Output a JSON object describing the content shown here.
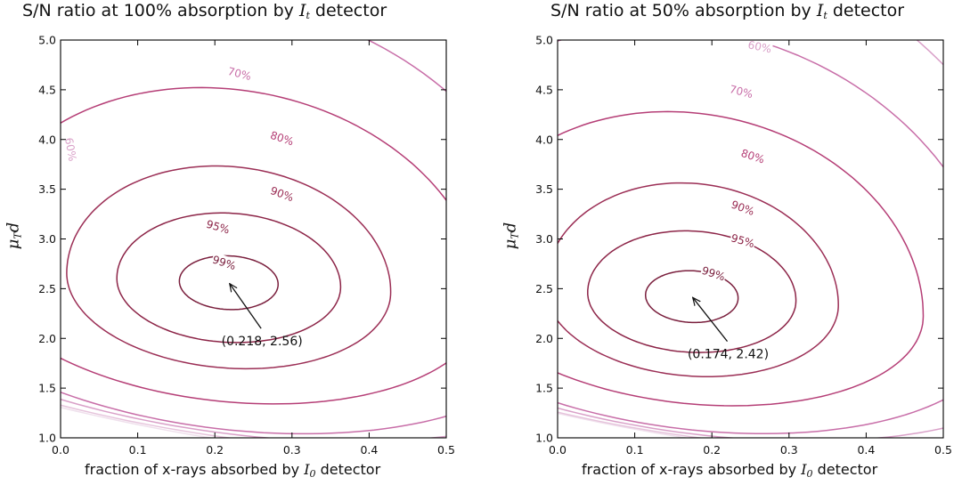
{
  "chart_data": [
    {
      "type": "contour",
      "title_prefix": "S/N ratio at 100% absorption by ",
      "title_var": "I",
      "title_var_sub": "t",
      "title_suffix": " detector",
      "xlabel_prefix": "fraction of x-rays absorbed by ",
      "xlabel_var": "I",
      "xlabel_var_sub": "0",
      "xlabel_suffix": " detector",
      "ylabel_var": "μ",
      "ylabel_var_sub": "T",
      "ylabel_var2": "d",
      "xlim": [
        0.0,
        0.5
      ],
      "ylim": [
        1.0,
        5.0
      ],
      "xticks": [
        "0.0",
        "0.1",
        "0.2",
        "0.3",
        "0.4",
        "0.5"
      ],
      "yticks": [
        "1.0",
        "1.5",
        "2.0",
        "2.5",
        "3.0",
        "3.5",
        "4.0",
        "4.5",
        "5.0"
      ],
      "optimum": {
        "x": 0.218,
        "y": 2.56
      },
      "annotation": "(0.218, 2.56)",
      "annotation_anchor": {
        "x": 0.26,
        "y": 2.1
      },
      "levels": [
        {
          "label": "99%",
          "level": 0.99,
          "color": "#7a1f3d",
          "rx": 0.064,
          "ryUp": 0.27,
          "ryDown": 0.27,
          "tilt": -0.25,
          "label_at": {
            "x": 0.212,
            "y": 2.76
          },
          "label_rot": 18
        },
        {
          "label": "95%",
          "level": 0.95,
          "color": "#8c2447",
          "rx": 0.145,
          "ryUp": 0.7,
          "ryDown": 0.6,
          "tilt": -0.3,
          "label_at": {
            "x": 0.204,
            "y": 3.12
          },
          "label_rot": 16
        },
        {
          "label": "90%",
          "level": 0.9,
          "color": "#9b2e55",
          "rx": 0.21,
          "ryUp": 1.17,
          "ryDown": 0.86,
          "tilt": -0.45,
          "label_at": {
            "x": 0.287,
            "y": 3.45
          },
          "label_rot": 20
        },
        {
          "label": "80%",
          "level": 0.8,
          "color": "#b53e76",
          "rx": 0.33,
          "ryUp": 1.95,
          "ryDown": 1.2,
          "tilt": -0.65,
          "label_at": {
            "x": 0.287,
            "y": 4.01
          },
          "label_rot": 18
        },
        {
          "label": "70%",
          "level": 0.7,
          "color": "#c86ea8",
          "rx": 0.43,
          "ryUp": 2.85,
          "ryDown": 1.48,
          "tilt": -0.8,
          "label_at": {
            "x": 0.232,
            "y": 4.66
          },
          "label_rot": 14
        },
        {
          "label": "60%",
          "level": 0.6,
          "color": "#d9a0c8",
          "rx": 0.52,
          "ryUp": 3.75,
          "ryDown": 1.52,
          "tilt": -0.95,
          "label_at": {
            "x": 0.013,
            "y": 3.9
          },
          "label_rot": 80
        },
        {
          "label": "",
          "level": 0.5,
          "color": "#e6c4dc",
          "rx": 0.62,
          "ryUp": 4.6,
          "ryDown": 1.56,
          "tilt": -1.05,
          "label_at": null,
          "label_rot": 0
        },
        {
          "label": "",
          "level": 0.4,
          "color": "#efe0ec",
          "rx": 0.72,
          "ryUp": 5.6,
          "ryDown": 1.59,
          "tilt": -1.2,
          "label_at": null,
          "label_rot": 0
        }
      ]
    },
    {
      "type": "contour",
      "title_prefix": "S/N ratio at 50% absorption by ",
      "title_var": "I",
      "title_var_sub": "t",
      "title_suffix": " detector",
      "xlabel_prefix": "fraction of x-rays absorbed by ",
      "xlabel_var": "I",
      "xlabel_var_sub": "0",
      "xlabel_suffix": " detector",
      "ylabel_var": "μ",
      "ylabel_var_sub": "T",
      "ylabel_var2": "d",
      "xlim": [
        0.0,
        0.5
      ],
      "ylim": [
        1.0,
        5.0
      ],
      "xticks": [
        "0.0",
        "0.1",
        "0.2",
        "0.3",
        "0.4",
        "0.5"
      ],
      "yticks": [
        "1.0",
        "1.5",
        "2.0",
        "2.5",
        "3.0",
        "3.5",
        "4.0",
        "4.5",
        "5.0"
      ],
      "optimum": {
        "x": 0.174,
        "y": 2.42
      },
      "annotation": "(0.174, 2.42)",
      "annotation_anchor": {
        "x": 0.22,
        "y": 1.97
      },
      "levels": [
        {
          "label": "99%",
          "level": 0.99,
          "color": "#7a1f3d",
          "rx": 0.06,
          "ryUp": 0.26,
          "ryDown": 0.26,
          "tilt": -0.25,
          "label_at": {
            "x": 0.202,
            "y": 2.65
          },
          "label_rot": 18
        },
        {
          "label": "95%",
          "level": 0.95,
          "color": "#8c2447",
          "rx": 0.135,
          "ryUp": 0.66,
          "ryDown": 0.56,
          "tilt": -0.3,
          "label_at": {
            "x": 0.24,
            "y": 2.98
          },
          "label_rot": 16
        },
        {
          "label": "90%",
          "level": 0.9,
          "color": "#9b2e55",
          "rx": 0.19,
          "ryUp": 1.14,
          "ryDown": 0.8,
          "tilt": -0.45,
          "label_at": {
            "x": 0.24,
            "y": 3.31
          },
          "label_rot": 20
        },
        {
          "label": "80%",
          "level": 0.8,
          "color": "#b53e76",
          "rx": 0.3,
          "ryUp": 1.85,
          "ryDown": 1.08,
          "tilt": -0.65,
          "label_at": {
            "x": 0.253,
            "y": 3.83
          },
          "label_rot": 18
        },
        {
          "label": "70%",
          "level": 0.7,
          "color": "#c86ea8",
          "rx": 0.4,
          "ryUp": 2.7,
          "ryDown": 1.34,
          "tilt": -0.8,
          "label_at": {
            "x": 0.238,
            "y": 4.48
          },
          "label_rot": 14
        },
        {
          "label": "60%",
          "level": 0.6,
          "color": "#d9a0c8",
          "rx": 0.48,
          "ryUp": 3.6,
          "ryDown": 1.38,
          "tilt": -0.95,
          "label_at": {
            "x": 0.262,
            "y": 4.93
          },
          "label_rot": 12
        },
        {
          "label": "",
          "level": 0.5,
          "color": "#e6c4dc",
          "rx": 0.58,
          "ryUp": 4.5,
          "ryDown": 1.41,
          "tilt": -1.05,
          "label_at": null,
          "label_rot": 0
        },
        {
          "label": "",
          "level": 0.4,
          "color": "#efe0ec",
          "rx": 0.68,
          "ryUp": 5.5,
          "ryDown": 1.43,
          "tilt": -1.2,
          "label_at": null,
          "label_rot": 0
        }
      ]
    }
  ]
}
